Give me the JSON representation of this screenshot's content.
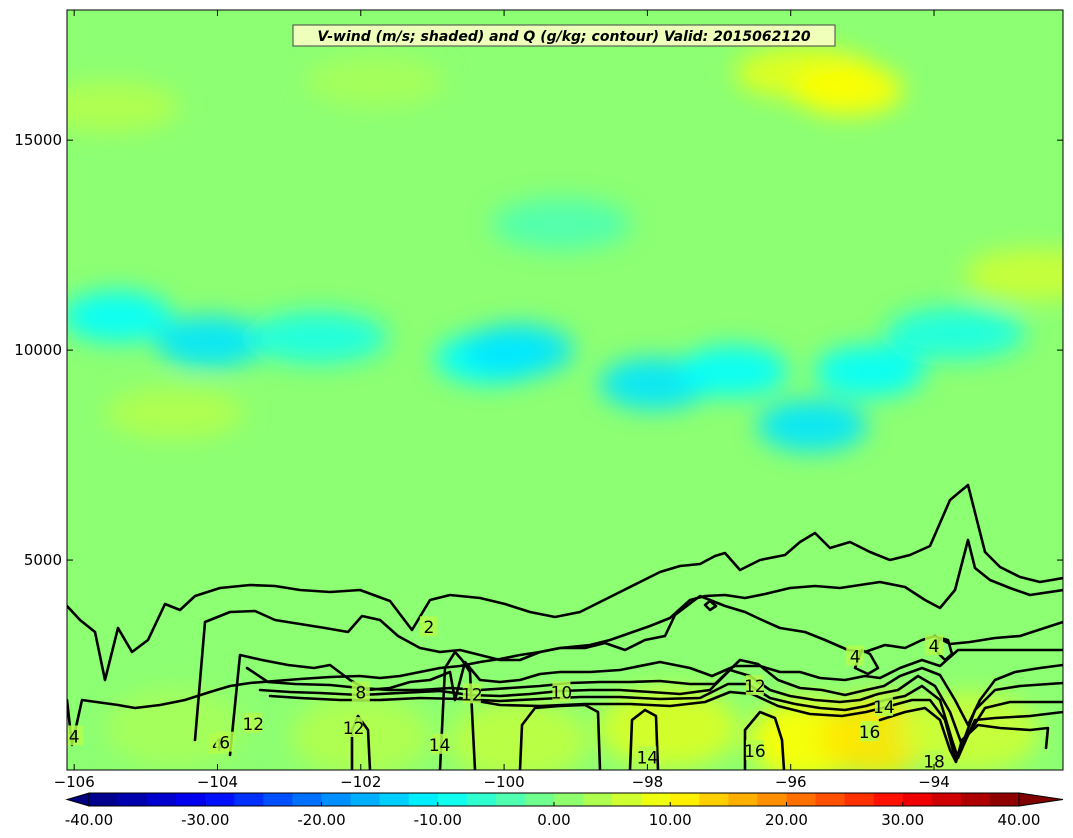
{
  "chart_data": {
    "type": "contour",
    "title": "V-wind (m/s; shaded) and Q (g/kg; contour) Valid: 2015062120",
    "xlabel": "",
    "ylabel": "",
    "xlim": [
      -106.1,
      -92.2
    ],
    "ylim": [
      0,
      18100
    ],
    "x_ticks": [
      -106,
      -104,
      -102,
      -100,
      -98,
      -96,
      -94
    ],
    "y_ticks": [
      5000,
      10000,
      15000
    ],
    "grid": false,
    "shaded_field": {
      "name": "V-wind (m/s)",
      "colorbar": {
        "min": -40,
        "max": 40,
        "step": 2.5,
        "extend": "both",
        "tick_values": [
          -40,
          -30,
          -20,
          -10,
          0,
          10,
          20,
          30,
          40
        ],
        "tick_labels": [
          "-40.00",
          "-30.00",
          "-20.00",
          "-10.00",
          "0.00",
          "10.00",
          "20.00",
          "30.00",
          "40.00"
        ]
      },
      "features": [
        {
          "x": -105.4,
          "y": 10800,
          "value": -10
        },
        {
          "x": -104.1,
          "y": 10200,
          "value": -12
        },
        {
          "x": -102.6,
          "y": 10300,
          "value": -8
        },
        {
          "x": -100.2,
          "y": 9800,
          "value": -10
        },
        {
          "x": -99.8,
          "y": 10000,
          "value": -12
        },
        {
          "x": -97.9,
          "y": 9200,
          "value": -12
        },
        {
          "x": -96.8,
          "y": 9500,
          "value": -10
        },
        {
          "x": -95.7,
          "y": 8200,
          "value": -12
        },
        {
          "x": -94.9,
          "y": 9500,
          "value": -10
        },
        {
          "x": -93.7,
          "y": 10400,
          "value": -8
        },
        {
          "x": -105.5,
          "y": 15800,
          "value": 4
        },
        {
          "x": -101.8,
          "y": 16400,
          "value": 3
        },
        {
          "x": -95.8,
          "y": 16600,
          "value": 8
        },
        {
          "x": -95.2,
          "y": 16200,
          "value": 10
        },
        {
          "x": -92.6,
          "y": 11800,
          "value": 6
        },
        {
          "x": -104.6,
          "y": 8500,
          "value": 4
        },
        {
          "x": -99.2,
          "y": 13000,
          "value": -4
        },
        {
          "x": -97.7,
          "y": 1000,
          "value": 7
        },
        {
          "x": -95.8,
          "y": 700,
          "value": 10
        },
        {
          "x": -94.8,
          "y": 800,
          "value": 12
        },
        {
          "x": -102.0,
          "y": 800,
          "value": 4
        },
        {
          "x": -104.6,
          "y": 1000,
          "value": 3
        },
        {
          "x": -99.8,
          "y": 700,
          "value": 5
        },
        {
          "x": -93.5,
          "y": 900,
          "value": 6
        }
      ]
    },
    "contour_field": {
      "name": "Q (g/kg)",
      "levels": [
        2,
        4,
        6,
        8,
        10,
        12,
        14,
        16,
        18
      ],
      "label_strings": [
        "2",
        "4",
        "6",
        "8",
        "10",
        "12",
        "14",
        "16",
        "18"
      ],
      "color": "#000000",
      "clabels": [
        {
          "text": "2",
          "x": -101.05,
          "y": 3400
        },
        {
          "text": "4",
          "x": -95.1,
          "y": 2700
        },
        {
          "text": "4",
          "x": -94.0,
          "y": 2950
        },
        {
          "text": "4",
          "x": -106.0,
          "y": 800
        },
        {
          "text": "4",
          "x": -104.0,
          "y": 600
        },
        {
          "text": "6",
          "x": -103.9,
          "y": 650
        },
        {
          "text": "8",
          "x": -102.0,
          "y": 1850
        },
        {
          "text": "10",
          "x": -99.2,
          "y": 1850
        },
        {
          "text": "12",
          "x": -100.45,
          "y": 1800
        },
        {
          "text": "12",
          "x": -102.1,
          "y": 1000
        },
        {
          "text": "12",
          "x": -103.5,
          "y": 1100
        },
        {
          "text": "12",
          "x": -96.5,
          "y": 2000
        },
        {
          "text": "14",
          "x": -100.9,
          "y": 600
        },
        {
          "text": "14",
          "x": -98.0,
          "y": 300
        },
        {
          "text": "14",
          "x": -94.7,
          "y": 1500
        },
        {
          "text": "16",
          "x": -96.5,
          "y": 450
        },
        {
          "text": "16",
          "x": -94.9,
          "y": 900
        },
        {
          "text": "18",
          "x": -94.0,
          "y": 200
        }
      ]
    }
  }
}
